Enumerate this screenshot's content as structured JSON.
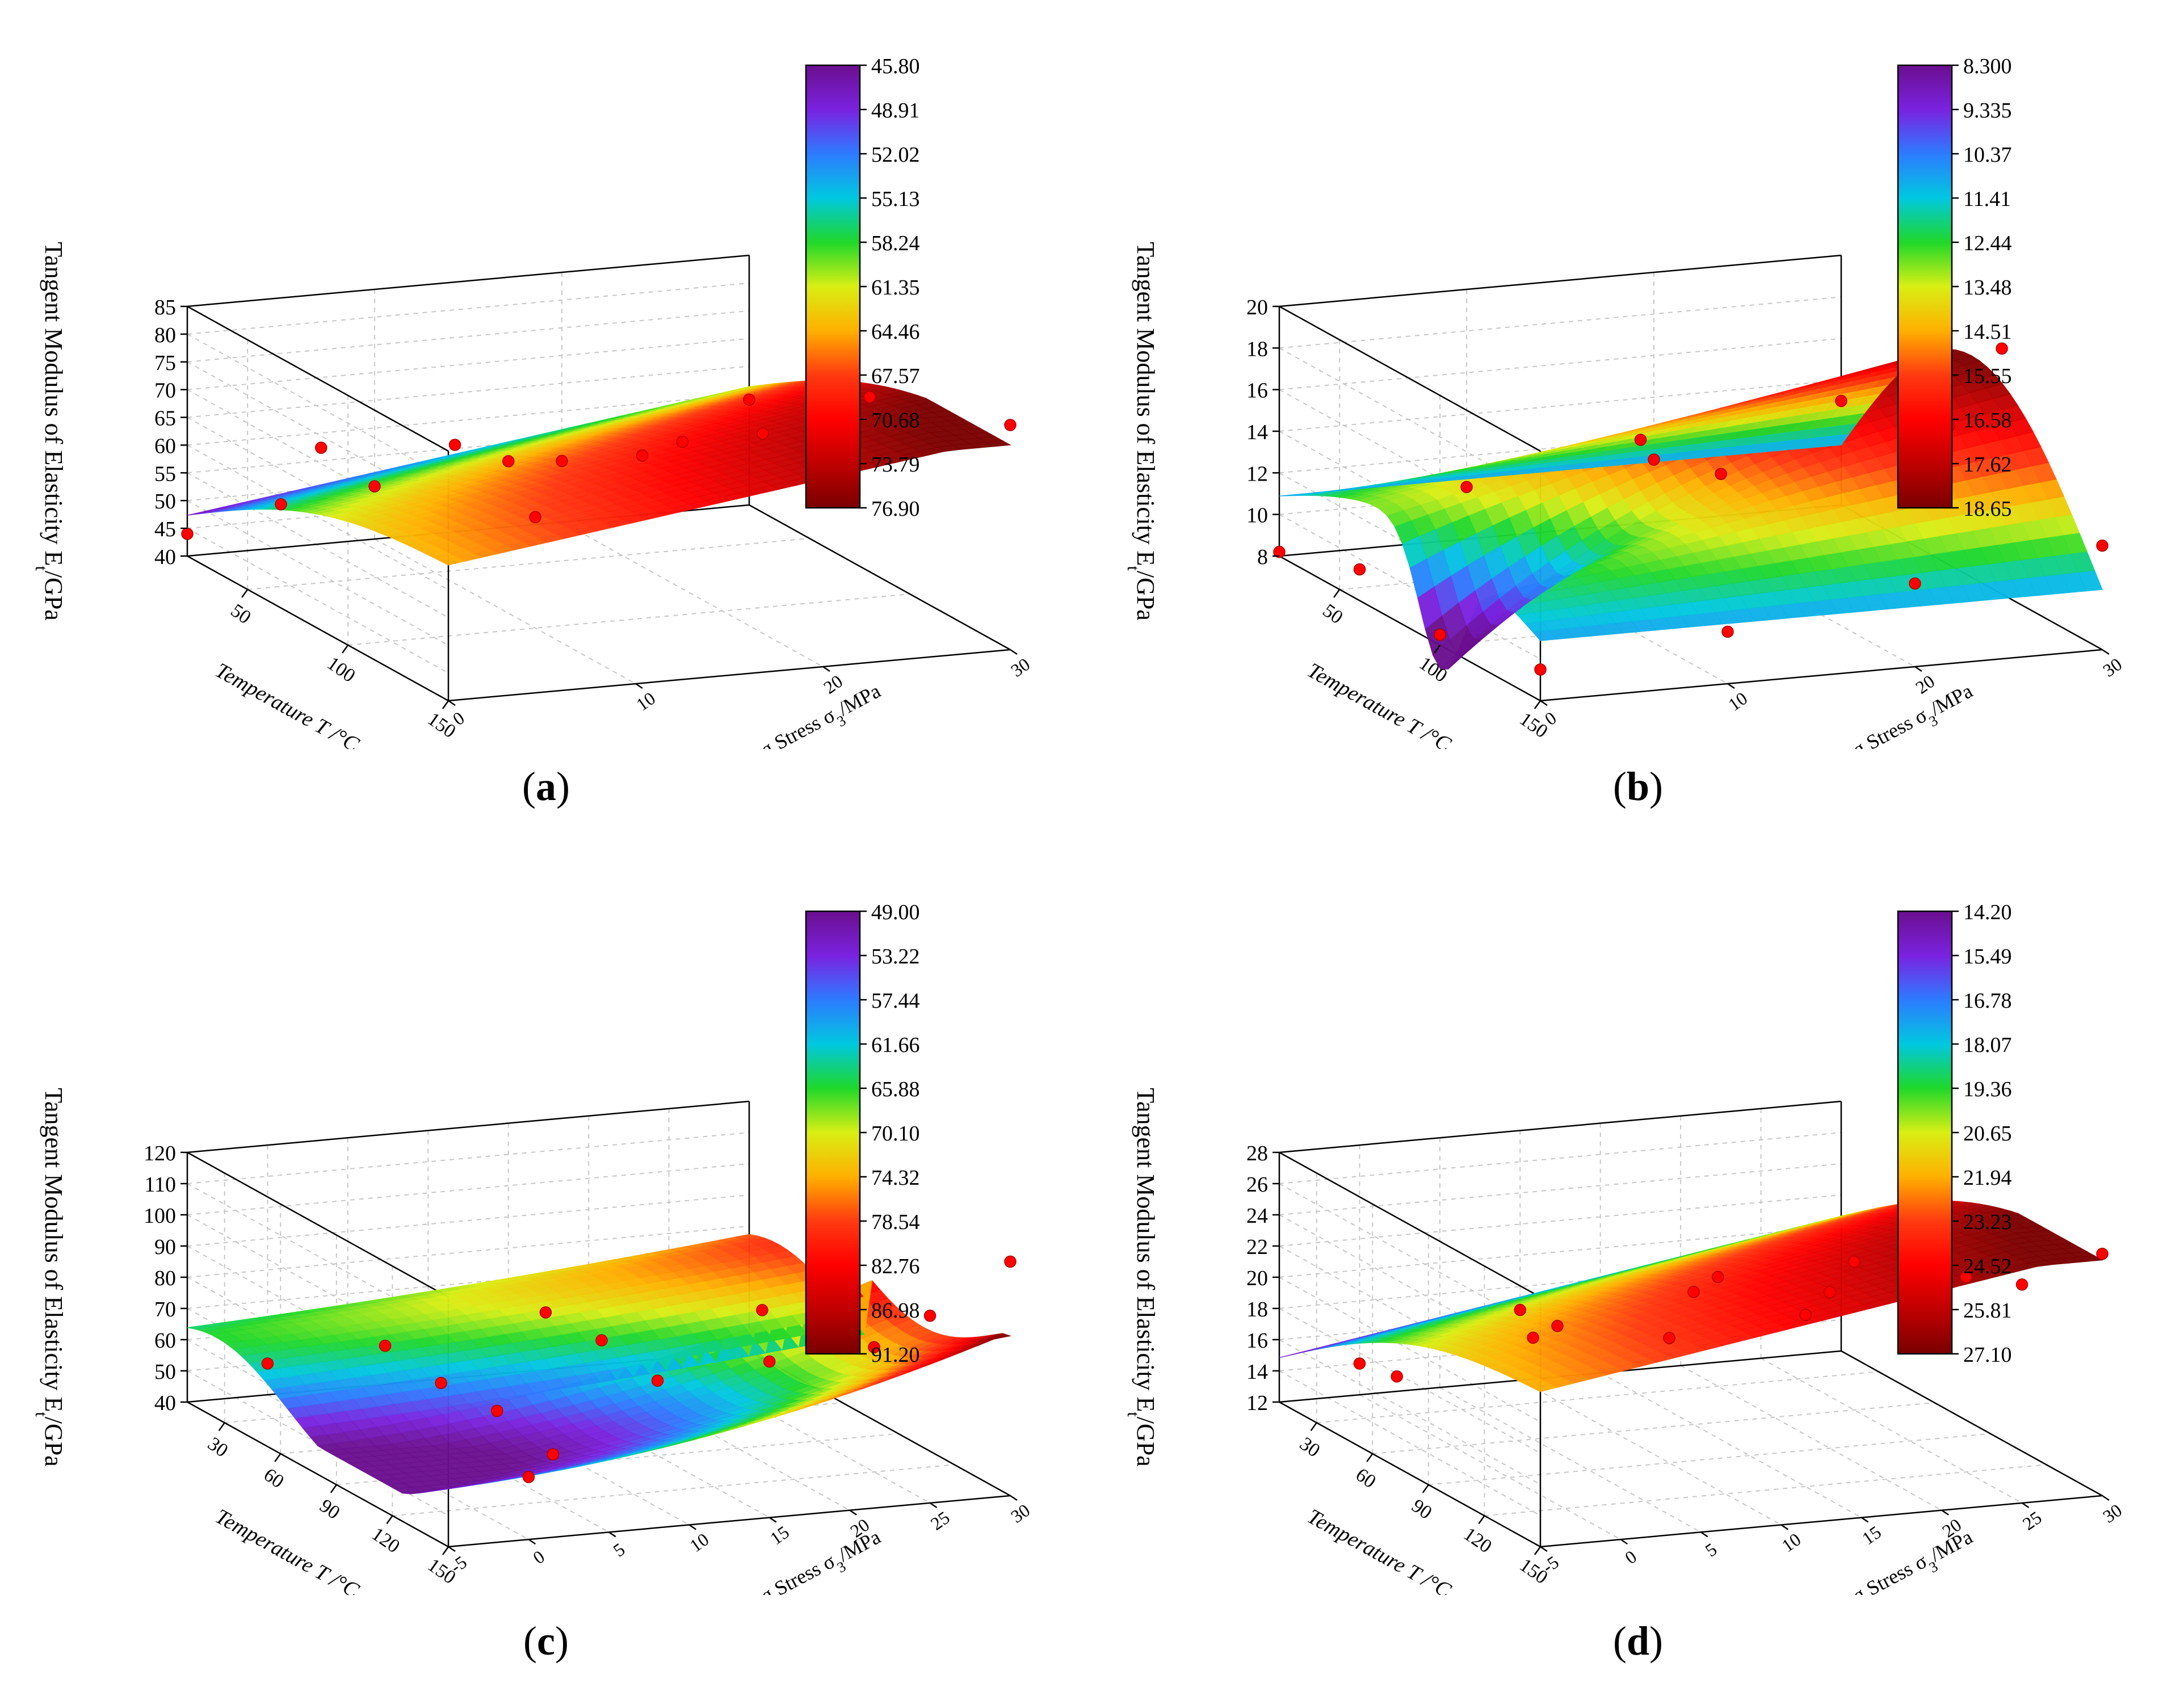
{
  "figure": {
    "panels": [
      {
        "label": "a"
      },
      {
        "label": "b"
      },
      {
        "label": "c"
      },
      {
        "label": "d"
      }
    ]
  },
  "chart_data": [
    {
      "type": "surface3d",
      "panel": "a",
      "zlabel": "Tangent Modulus of Elasticity E",
      "zlabel_sub": "t",
      "zlabel_unit": "/GPa",
      "xlabel": "Temperature T /°C",
      "ylabel": "Confining Stress σ",
      "ylabel_sub": "3",
      "ylabel_unit": "/MPa",
      "zlim": [
        40,
        85
      ],
      "zticks": [
        "40",
        "45",
        "50",
        "55",
        "60",
        "65",
        "70",
        "75",
        "80",
        "85"
      ],
      "xticks": [
        "50",
        "100",
        "150"
      ],
      "xtick_values": [
        50,
        100,
        150
      ],
      "xlim": [
        20,
        150
      ],
      "yticks": [
        "0",
        "10",
        "20",
        "30"
      ],
      "ytick_values": [
        0,
        10,
        20,
        30
      ],
      "ylim": [
        0,
        30
      ],
      "colorbar": [
        "45.80",
        "48.91",
        "52.02",
        "55.13",
        "58.24",
        "61.35",
        "64.46",
        "67.57",
        "70.68",
        "73.79",
        "76.90"
      ],
      "colormap": [
        "#6b0f8f",
        "#7a22e0",
        "#2d7bff",
        "#00c8e0",
        "#1fd82a",
        "#d9ef14",
        "#ffb000",
        "#ff3a10",
        "#ff0000",
        "#c00000",
        "#7a0000"
      ],
      "shape": "ridge",
      "points": [
        {
          "t": 20,
          "s": 0,
          "e": 44.0
        },
        {
          "t": 20,
          "s": 5,
          "e": 47.8
        },
        {
          "t": 20,
          "s": 10,
          "e": 49.5
        },
        {
          "t": 20,
          "s": 20,
          "e": 51.0
        },
        {
          "t": 20,
          "s": 30,
          "e": 59.0
        },
        {
          "t": 40,
          "s": 5,
          "e": 62.0
        },
        {
          "t": 40,
          "s": 15,
          "e": 56.5
        },
        {
          "t": 60,
          "s": 10,
          "e": 65.0
        },
        {
          "t": 60,
          "s": 20,
          "e": 60.0
        },
        {
          "t": 80,
          "s": 20,
          "e": 66.5
        },
        {
          "t": 80,
          "s": 30,
          "e": 71.5
        },
        {
          "t": 100,
          "s": 10,
          "e": 60.0
        },
        {
          "t": 100,
          "s": 25,
          "e": 73.0
        },
        {
          "t": 120,
          "s": 20,
          "e": 76.0
        },
        {
          "t": 150,
          "s": 30,
          "e": 80.5
        }
      ]
    },
    {
      "type": "surface3d",
      "panel": "b",
      "zlabel": "Tangent Modulus of Elasticity E",
      "zlabel_sub": "t",
      "zlabel_unit": "/GPa",
      "xlabel": "Temperature T /°C",
      "ylabel": "Confining Stress σ",
      "ylabel_sub": "3",
      "ylabel_unit": "/MPa",
      "zlim": [
        8,
        20
      ],
      "zticks": [
        "8",
        "10",
        "12",
        "14",
        "16",
        "18",
        "20"
      ],
      "xticks": [
        "50",
        "100",
        "150"
      ],
      "xtick_values": [
        50,
        100,
        150
      ],
      "xlim": [
        20,
        150
      ],
      "yticks": [
        "0",
        "10",
        "20",
        "30"
      ],
      "ytick_values": [
        0,
        10,
        20,
        30
      ],
      "ylim": [
        0,
        30
      ],
      "colorbar": [
        "8.300",
        "9.335",
        "10.37",
        "11.41",
        "12.44",
        "13.48",
        "14.51",
        "15.55",
        "16.58",
        "17.62",
        "18.65"
      ],
      "colormap": [
        "#6b0f8f",
        "#7a22e0",
        "#2d7bff",
        "#00c8e0",
        "#1fd82a",
        "#d9ef14",
        "#ffb000",
        "#ff3a10",
        "#ff0000",
        "#c00000",
        "#7a0000"
      ],
      "shape": "dome",
      "points": [
        {
          "t": 20,
          "s": 0,
          "e": 8.2
        },
        {
          "t": 20,
          "s": 10,
          "e": 10.5
        },
        {
          "t": 20,
          "s": 20,
          "e": 11.0
        },
        {
          "t": 20,
          "s": 30,
          "e": 13.0
        },
        {
          "t": 60,
          "s": 0,
          "e": 9.5
        },
        {
          "t": 60,
          "s": 15,
          "e": 14.5
        },
        {
          "t": 60,
          "s": 30,
          "e": 19.5
        },
        {
          "t": 100,
          "s": 0,
          "e": 8.5
        },
        {
          "t": 100,
          "s": 15,
          "e": 15.0
        },
        {
          "t": 100,
          "s": 30,
          "e": 19.8
        },
        {
          "t": 150,
          "s": 0,
          "e": 9.5
        },
        {
          "t": 150,
          "s": 10,
          "e": 10.5
        },
        {
          "t": 150,
          "s": 20,
          "e": 12.0
        },
        {
          "t": 150,
          "s": 30,
          "e": 13.0
        },
        {
          "t": 120,
          "s": 25,
          "e": 17.5
        }
      ]
    },
    {
      "type": "surface3d",
      "panel": "c",
      "zlabel": "Tangent Modulus of Elasticity E",
      "zlabel_sub": "t",
      "zlabel_unit": "/GPa",
      "xlabel": "Temperature T /°C",
      "ylabel": "Confining Stress σ",
      "ylabel_sub": "3",
      "ylabel_unit": "/MPa",
      "zlim": [
        40,
        120
      ],
      "zticks": [
        "40",
        "50",
        "60",
        "70",
        "80",
        "90",
        "100",
        "110",
        "120"
      ],
      "xticks": [
        "30",
        "60",
        "90",
        "120",
        "150"
      ],
      "xtick_values": [
        30,
        60,
        90,
        120,
        150
      ],
      "xlim": [
        10,
        150
      ],
      "yticks": [
        "-5",
        "0",
        "5",
        "10",
        "15",
        "20",
        "25",
        "30"
      ],
      "ytick_values": [
        -5,
        0,
        5,
        10,
        15,
        20,
        25,
        30
      ],
      "ylim": [
        -5,
        30
      ],
      "colorbar": [
        "49.00",
        "53.22",
        "57.44",
        "61.66",
        "65.88",
        "70.10",
        "74.32",
        "78.54",
        "82.76",
        "86.98",
        "91.20"
      ],
      "colormap": [
        "#6b0f8f",
        "#7a22e0",
        "#2d7bff",
        "#00c8e0",
        "#1fd82a",
        "#d9ef14",
        "#ffb000",
        "#ff3a10",
        "#ff0000",
        "#c00000",
        "#7a0000"
      ],
      "shape": "wave",
      "points": [
        {
          "t": 10,
          "s": 0,
          "e": 50.0
        },
        {
          "t": 30,
          "s": 5,
          "e": 60.0
        },
        {
          "t": 30,
          "s": 15,
          "e": 66.0
        },
        {
          "t": 60,
          "s": 5,
          "e": 58.0
        },
        {
          "t": 60,
          "s": 15,
          "e": 67.0
        },
        {
          "t": 60,
          "s": 25,
          "e": 72.0
        },
        {
          "t": 90,
          "s": 5,
          "e": 59.0
        },
        {
          "t": 90,
          "s": 15,
          "e": 64.0
        },
        {
          "t": 90,
          "s": 25,
          "e": 75.0
        },
        {
          "t": 120,
          "s": 5,
          "e": 55.0
        },
        {
          "t": 120,
          "s": 25,
          "e": 80.0
        },
        {
          "t": 150,
          "s": 0,
          "e": 60.0
        },
        {
          "t": 150,
          "s": 15,
          "e": 90.0
        },
        {
          "t": 150,
          "s": 25,
          "e": 100.0
        },
        {
          "t": 150,
          "s": 30,
          "e": 115.0
        }
      ]
    },
    {
      "type": "surface3d",
      "panel": "d",
      "zlabel": "Tangent Modulus of Elasticity E",
      "zlabel_sub": "t",
      "zlabel_unit": "/GPa",
      "xlabel": "Temperature T /°C",
      "ylabel": "Confining Stress σ",
      "ylabel_sub": "3",
      "ylabel_unit": "/MPa",
      "zlim": [
        12,
        28
      ],
      "zticks": [
        "12",
        "14",
        "16",
        "18",
        "20",
        "22",
        "24",
        "26",
        "28"
      ],
      "xticks": [
        "30",
        "60",
        "90",
        "120",
        "150"
      ],
      "xtick_values": [
        30,
        60,
        90,
        120,
        150
      ],
      "xlim": [
        10,
        150
      ],
      "yticks": [
        "-5",
        "0",
        "5",
        "10",
        "15",
        "20",
        "25",
        "30"
      ],
      "ytick_values": [
        -5,
        0,
        5,
        10,
        15,
        20,
        25,
        30
      ],
      "ylim": [
        -5,
        30
      ],
      "colorbar": [
        "14.20",
        "15.49",
        "16.78",
        "18.07",
        "19.36",
        "20.65",
        "21.94",
        "23.23",
        "24.52",
        "25.81",
        "27.10"
      ],
      "colormap": [
        "#6b0f8f",
        "#7a22e0",
        "#2d7bff",
        "#00c8e0",
        "#1fd82a",
        "#d9ef14",
        "#ffb000",
        "#ff3a10",
        "#ff0000",
        "#c00000",
        "#7a0000"
      ],
      "shape": "ridge",
      "points": [
        {
          "t": 10,
          "s": 0,
          "e": 14.0
        },
        {
          "t": 10,
          "s": 10,
          "e": 16.5
        },
        {
          "t": 30,
          "s": 0,
          "e": 14.5
        },
        {
          "t": 30,
          "s": 10,
          "e": 16.8
        },
        {
          "t": 30,
          "s": 20,
          "e": 19.0
        },
        {
          "t": 60,
          "s": 5,
          "e": 18.5
        },
        {
          "t": 60,
          "s": 15,
          "e": 20.5
        },
        {
          "t": 60,
          "s": 25,
          "e": 21.5
        },
        {
          "t": 90,
          "s": 10,
          "e": 20.0
        },
        {
          "t": 90,
          "s": 20,
          "e": 22.0
        },
        {
          "t": 120,
          "s": 15,
          "e": 23.0
        },
        {
          "t": 120,
          "s": 25,
          "e": 24.5
        },
        {
          "t": 150,
          "s": 20,
          "e": 25.5
        },
        {
          "t": 150,
          "s": 25,
          "e": 26.0
        },
        {
          "t": 150,
          "s": 30,
          "e": 27.5
        }
      ]
    }
  ]
}
